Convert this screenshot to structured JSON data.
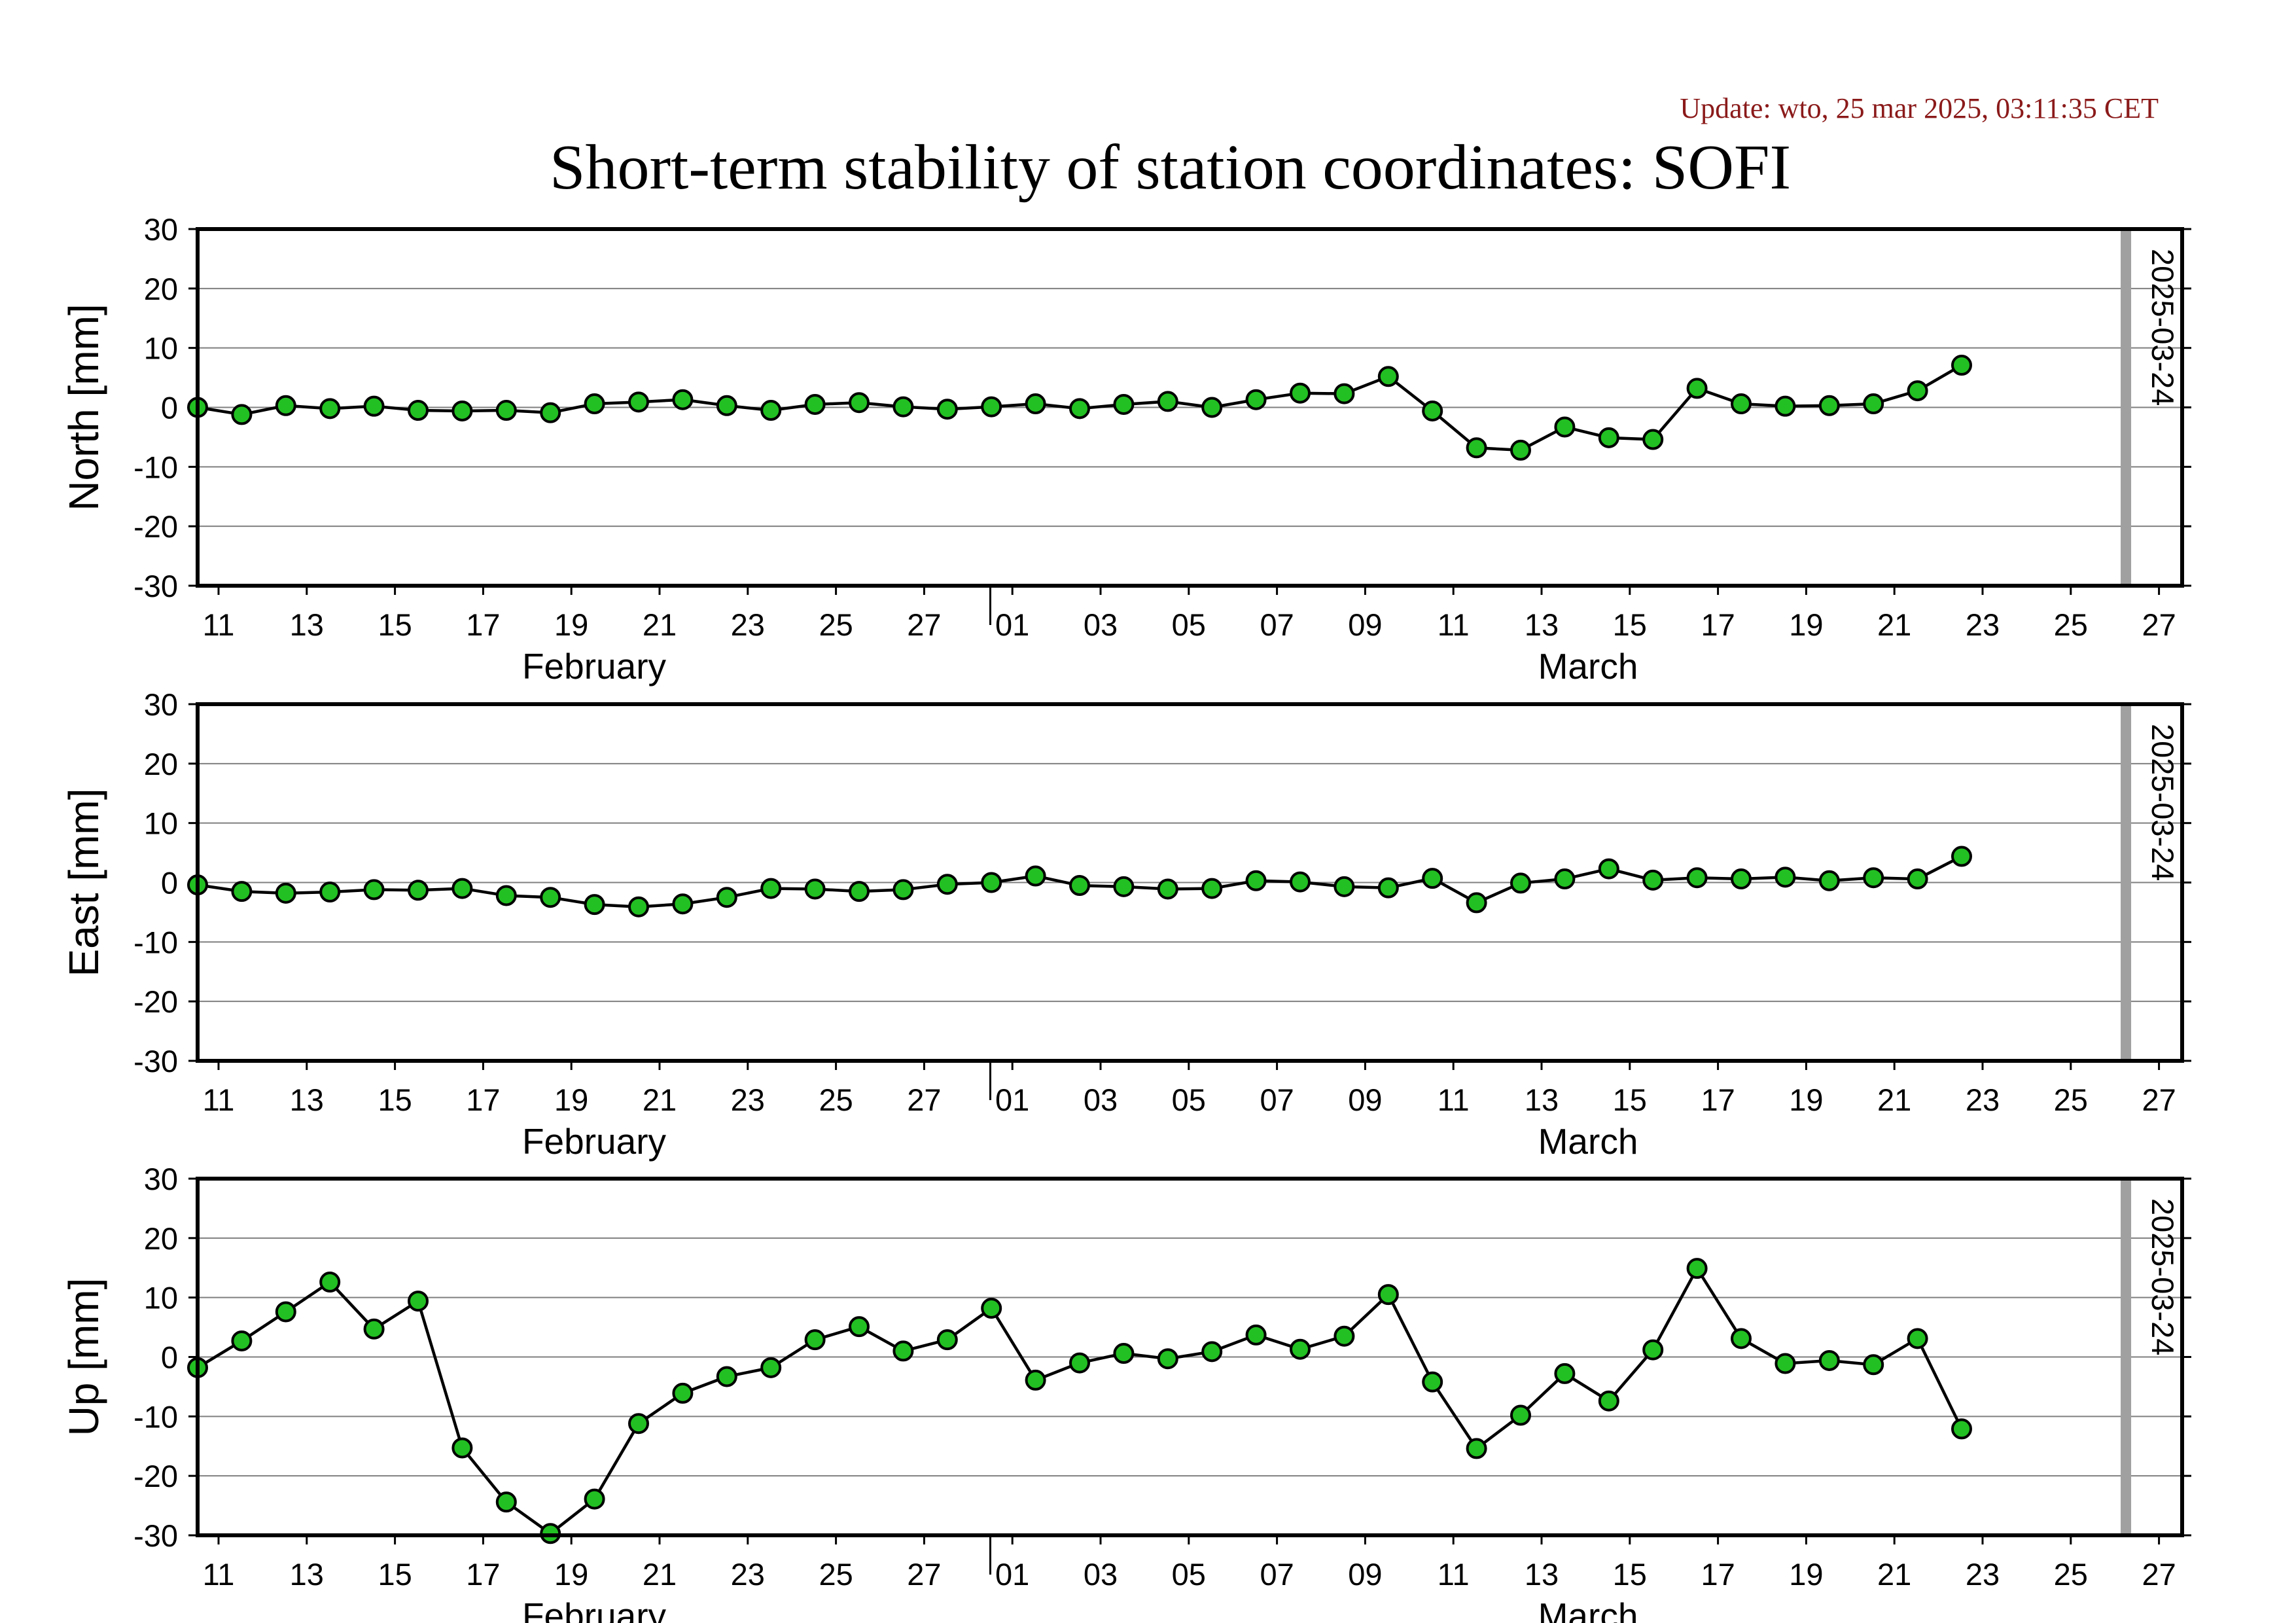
{
  "update": "Update: wto, 25 mar 2025, 03:11:35 CET",
  "title": "Short-term stability of station coordinates: SOFI",
  "colors": {
    "marker": "#22c022",
    "line": "#000000",
    "grid": "#7f7f7f",
    "marker_line": "#a0a0a0",
    "update": "#8b1a1a"
  },
  "chart_data": [
    {
      "type": "line",
      "ylabel": "North [mm]",
      "ylim": [
        -30,
        30
      ],
      "yticks": [
        30,
        20,
        10,
        0,
        -10,
        -20,
        -30
      ],
      "xticks": [
        "11",
        "13",
        "15",
        "17",
        "19",
        "21",
        "23",
        "25",
        "27",
        "01",
        "03",
        "05",
        "07",
        "09",
        "11",
        "13",
        "15",
        "17",
        "19",
        "21",
        "23",
        "25",
        "27"
      ],
      "month_labels": [
        "February",
        "March"
      ],
      "marker_label": "2025-03-24",
      "values": [
        0.0,
        -1.2,
        0.3,
        -0.2,
        0.2,
        -0.5,
        -0.6,
        -0.5,
        -0.9,
        0.6,
        0.9,
        1.3,
        0.3,
        -0.5,
        0.5,
        0.8,
        0.1,
        -0.3,
        0.1,
        0.6,
        -0.2,
        0.5,
        1.0,
        0.0,
        1.3,
        2.4,
        2.3,
        5.2,
        -0.6,
        -6.8,
        -7.2,
        -3.3,
        -5.1,
        -5.4,
        3.2,
        0.6,
        0.2,
        0.3,
        0.6,
        2.8,
        7.1
      ]
    },
    {
      "type": "line",
      "ylabel": "East [mm]",
      "ylim": [
        -30,
        30
      ],
      "yticks": [
        30,
        20,
        10,
        0,
        -10,
        -20,
        -30
      ],
      "xticks": [
        "11",
        "13",
        "15",
        "17",
        "19",
        "21",
        "23",
        "25",
        "27",
        "01",
        "03",
        "05",
        "07",
        "09",
        "11",
        "13",
        "15",
        "17",
        "19",
        "21",
        "23",
        "25",
        "27"
      ],
      "month_labels": [
        "February",
        "March"
      ],
      "marker_label": "2025-03-24",
      "values": [
        -0.4,
        -1.5,
        -1.8,
        -1.6,
        -1.2,
        -1.3,
        -1.0,
        -2.2,
        -2.5,
        -3.7,
        -4.1,
        -3.6,
        -2.5,
        -1.0,
        -1.1,
        -1.5,
        -1.2,
        -0.3,
        0.0,
        1.1,
        -0.5,
        -0.7,
        -1.1,
        -1.0,
        0.3,
        0.1,
        -0.7,
        -0.9,
        0.7,
        -3.4,
        -0.1,
        0.6,
        2.3,
        0.4,
        0.8,
        0.6,
        0.9,
        0.3,
        0.8,
        0.6,
        4.4
      ]
    },
    {
      "type": "line",
      "ylabel": "Up [mm]",
      "ylim": [
        -30,
        30
      ],
      "yticks": [
        30,
        20,
        10,
        0,
        -10,
        -20,
        -30
      ],
      "xticks": [
        "11",
        "13",
        "15",
        "17",
        "19",
        "21",
        "23",
        "25",
        "27",
        "01",
        "03",
        "05",
        "07",
        "09",
        "11",
        "13",
        "15",
        "17",
        "19",
        "21",
        "23",
        "25",
        "27"
      ],
      "month_labels": [
        "February",
        "March"
      ],
      "marker_label": "2025-03-24",
      "values": [
        -1.8,
        2.7,
        7.6,
        12.6,
        4.7,
        9.4,
        -15.3,
        -24.4,
        -29.7,
        -23.9,
        -11.2,
        -6.1,
        -3.3,
        -1.8,
        2.9,
        5.1,
        1.0,
        2.9,
        8.2,
        -3.9,
        -1.0,
        0.6,
        -0.3,
        0.9,
        3.7,
        1.3,
        3.5,
        10.5,
        -4.2,
        -15.4,
        -9.8,
        -2.8,
        -7.4,
        1.2,
        14.9,
        3.1,
        -1.1,
        -0.6,
        -1.3,
        3.1,
        -12.1
      ]
    }
  ]
}
